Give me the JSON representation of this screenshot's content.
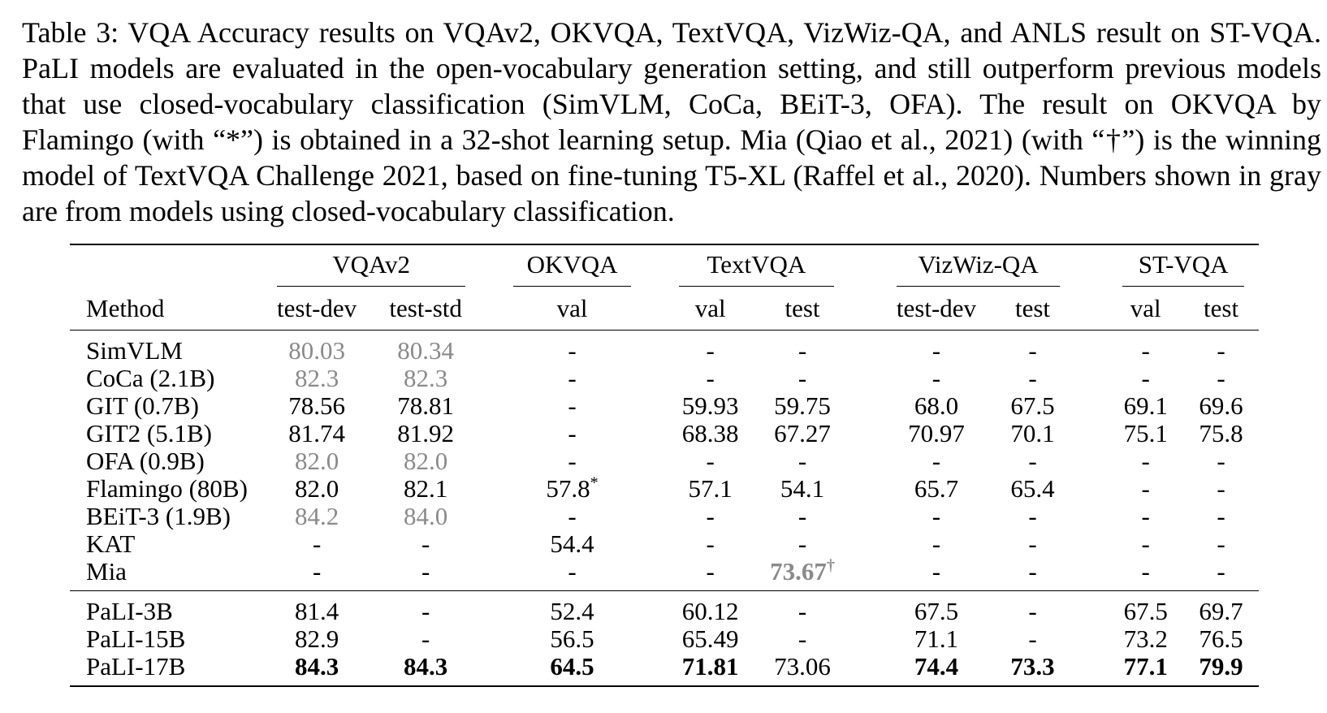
{
  "caption": "Table 3: VQA Accuracy results on VQAv2, OKVQA, TextVQA, VizWiz-QA, and ANLS result on ST-VQA. PaLI models are evaluated in the open-vocabulary generation setting, and still outperform previous models that use closed-vocabulary classification (SimVLM, CoCa, BEiT-3, OFA). The result on OKVQA by Flamingo (with “*”) is obtained in a 32-shot learning setup. Mia (Qiao et al., 2021) (with “†”) is the winning model of TextVQA Challenge 2021, based on fine-tuning T5-XL (Raffel et al., 2020). Numbers shown in gray are from models using closed-vocabulary classification.",
  "table": {
    "groups": [
      "VQAv2",
      "OKVQA",
      "TextVQA",
      "VizWiz-QA",
      "ST-VQA"
    ],
    "method_header": "Method",
    "subheaders": [
      "test-dev",
      "test-std",
      "val",
      "val",
      "test",
      "test-dev",
      "test",
      "val",
      "test"
    ],
    "rows_prior": [
      {
        "method": "SimVLM",
        "cells": [
          {
            "v": "80.03",
            "s": "gray"
          },
          {
            "v": "80.34",
            "s": "gray"
          },
          {
            "v": "-"
          },
          {
            "v": "-"
          },
          {
            "v": "-"
          },
          {
            "v": "-"
          },
          {
            "v": "-"
          },
          {
            "v": "-"
          },
          {
            "v": "-"
          }
        ]
      },
      {
        "method": "CoCa (2.1B)",
        "cells": [
          {
            "v": "82.3",
            "s": "gray"
          },
          {
            "v": "82.3",
            "s": "gray"
          },
          {
            "v": "-"
          },
          {
            "v": "-"
          },
          {
            "v": "-"
          },
          {
            "v": "-"
          },
          {
            "v": "-"
          },
          {
            "v": "-"
          },
          {
            "v": "-"
          }
        ]
      },
      {
        "method": "GIT (0.7B)",
        "cells": [
          {
            "v": "78.56"
          },
          {
            "v": "78.81"
          },
          {
            "v": "-"
          },
          {
            "v": "59.93"
          },
          {
            "v": "59.75"
          },
          {
            "v": "68.0"
          },
          {
            "v": "67.5"
          },
          {
            "v": "69.1"
          },
          {
            "v": "69.6"
          }
        ]
      },
      {
        "method": "GIT2 (5.1B)",
        "cells": [
          {
            "v": "81.74"
          },
          {
            "v": "81.92"
          },
          {
            "v": "-"
          },
          {
            "v": "68.38"
          },
          {
            "v": "67.27"
          },
          {
            "v": "70.97"
          },
          {
            "v": "70.1"
          },
          {
            "v": "75.1"
          },
          {
            "v": "75.8"
          }
        ]
      },
      {
        "method": "OFA (0.9B)",
        "cells": [
          {
            "v": "82.0",
            "s": "gray"
          },
          {
            "v": "82.0",
            "s": "gray"
          },
          {
            "v": "-"
          },
          {
            "v": "-"
          },
          {
            "v": "-"
          },
          {
            "v": "-"
          },
          {
            "v": "-"
          },
          {
            "v": "-"
          },
          {
            "v": "-"
          }
        ]
      },
      {
        "method": "Flamingo (80B)",
        "cells": [
          {
            "v": "82.0"
          },
          {
            "v": "82.1"
          },
          {
            "v": "57.8",
            "sup": "*"
          },
          {
            "v": "57.1"
          },
          {
            "v": "54.1"
          },
          {
            "v": "65.7"
          },
          {
            "v": "65.4"
          },
          {
            "v": "-"
          },
          {
            "v": "-"
          }
        ]
      },
      {
        "method": "BEiT-3 (1.9B)",
        "cells": [
          {
            "v": "84.2",
            "s": "gray"
          },
          {
            "v": "84.0",
            "s": "gray"
          },
          {
            "v": "-"
          },
          {
            "v": "-"
          },
          {
            "v": "-"
          },
          {
            "v": "-"
          },
          {
            "v": "-"
          },
          {
            "v": "-"
          },
          {
            "v": "-"
          }
        ]
      },
      {
        "method": "KAT",
        "cells": [
          {
            "v": "-"
          },
          {
            "v": "-"
          },
          {
            "v": "54.4"
          },
          {
            "v": "-"
          },
          {
            "v": "-"
          },
          {
            "v": "-"
          },
          {
            "v": "-"
          },
          {
            "v": "-"
          },
          {
            "v": "-"
          }
        ]
      },
      {
        "method": "Mia",
        "cells": [
          {
            "v": "-"
          },
          {
            "v": "-"
          },
          {
            "v": "-"
          },
          {
            "v": "-"
          },
          {
            "v": "73.67",
            "s": "gray-bold",
            "sup": "†"
          },
          {
            "v": "-"
          },
          {
            "v": "-"
          },
          {
            "v": "-"
          },
          {
            "v": "-"
          }
        ]
      }
    ],
    "rows_pali": [
      {
        "method": "PaLI-3B",
        "cells": [
          {
            "v": "81.4"
          },
          {
            "v": "-"
          },
          {
            "v": "52.4"
          },
          {
            "v": "60.12"
          },
          {
            "v": "-"
          },
          {
            "v": "67.5"
          },
          {
            "v": "-"
          },
          {
            "v": "67.5"
          },
          {
            "v": "69.7"
          }
        ]
      },
      {
        "method": "PaLI-15B",
        "cells": [
          {
            "v": "82.9"
          },
          {
            "v": "-"
          },
          {
            "v": "56.5"
          },
          {
            "v": "65.49"
          },
          {
            "v": "-"
          },
          {
            "v": "71.1"
          },
          {
            "v": "-"
          },
          {
            "v": "73.2"
          },
          {
            "v": "76.5"
          }
        ]
      },
      {
        "method": "PaLI-17B",
        "cells": [
          {
            "v": "84.3",
            "s": "bold"
          },
          {
            "v": "84.3",
            "s": "bold"
          },
          {
            "v": "64.5",
            "s": "bold"
          },
          {
            "v": "71.81",
            "s": "bold"
          },
          {
            "v": "73.06"
          },
          {
            "v": "74.4",
            "s": "bold"
          },
          {
            "v": "73.3",
            "s": "bold"
          },
          {
            "v": "77.1",
            "s": "bold"
          },
          {
            "v": "79.9",
            "s": "bold"
          }
        ]
      }
    ]
  }
}
